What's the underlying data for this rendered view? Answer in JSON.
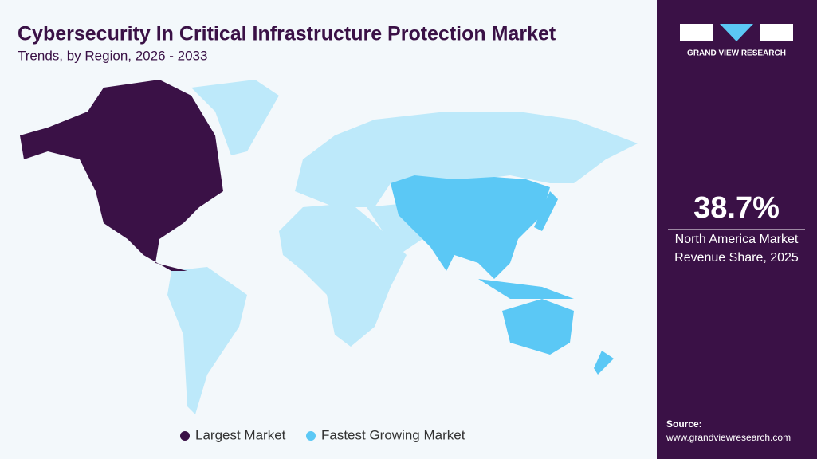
{
  "header": {
    "title": "Cybersecurity In Critical Infrastructure Protection Market",
    "subtitle": "Trends, by Region, 2026 - 2033"
  },
  "legend": [
    {
      "name": "Largest Market",
      "color": "#3a1146"
    },
    {
      "name": "Fastest Growing Market",
      "color": "#5bc8f5"
    }
  ],
  "sidebar": {
    "brand": "GRAND VIEW RESEARCH",
    "stat": "38.7%",
    "stat_label": [
      "North America Market",
      "Revenue Share, 2025"
    ],
    "source_label": "Source:",
    "source_url": "www.grandviewresearch.com"
  }
}
